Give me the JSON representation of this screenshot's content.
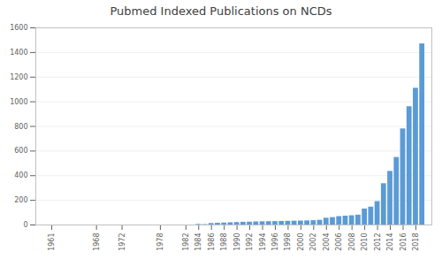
{
  "chart_data": {
    "type": "bar",
    "title": "Pubmed Indexed Publications on NCDs",
    "x": [
      1961,
      1962,
      1963,
      1964,
      1965,
      1966,
      1967,
      1968,
      1969,
      1970,
      1971,
      1972,
      1973,
      1974,
      1975,
      1976,
      1977,
      1978,
      1979,
      1980,
      1981,
      1982,
      1983,
      1984,
      1985,
      1986,
      1987,
      1988,
      1989,
      1990,
      1991,
      1992,
      1993,
      1994,
      1995,
      1996,
      1997,
      1998,
      1999,
      2000,
      2001,
      2002,
      2003,
      2004,
      2005,
      2006,
      2007,
      2008,
      2009,
      2010,
      2011,
      2012,
      2013,
      2014,
      2015,
      2016,
      2017,
      2018,
      2019
    ],
    "values": [
      0,
      0,
      0,
      0,
      0,
      0,
      0,
      0,
      0,
      0,
      0,
      0,
      0,
      0,
      0,
      0,
      0,
      0,
      0,
      0,
      0,
      0,
      0,
      5,
      3,
      12,
      14,
      16,
      18,
      20,
      22,
      23,
      25,
      26,
      27,
      28,
      29,
      30,
      31,
      32,
      33,
      35,
      38,
      55,
      60,
      68,
      72,
      75,
      80,
      130,
      145,
      190,
      335,
      435,
      548,
      780,
      960,
      1110,
      1470
    ],
    "color": "#5b9bd5",
    "xlim": [
      1958.5,
      2020.5
    ],
    "xticks": [
      1961,
      1968,
      1972,
      1978,
      1982,
      1984,
      1986,
      1988,
      1990,
      1992,
      1994,
      1996,
      1998,
      2000,
      2002,
      2004,
      2006,
      2008,
      2010,
      2012,
      2014,
      2016,
      2018
    ],
    "ylim": [
      0,
      1600
    ],
    "yticks": [
      0,
      200,
      400,
      600,
      800,
      1000,
      1200,
      1400,
      1600
    ],
    "grid": true
  }
}
